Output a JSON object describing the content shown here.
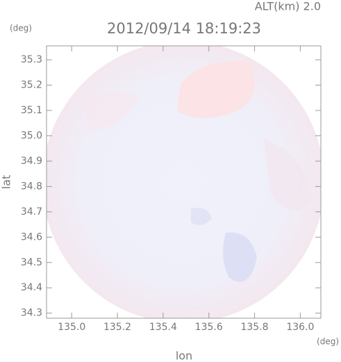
{
  "chart_data": {
    "type": "radar-field",
    "title": "2012/09/14 18:19:23",
    "annotation": "ALT(km) 2.0",
    "x_label": "lon",
    "y_label": "lat",
    "x_unit": "(deg)",
    "y_unit": "(deg)",
    "xlim": [
      134.89,
      136.09
    ],
    "xticks": [
      {
        "value": 135,
        "label": "135.0"
      },
      135.2,
      135.4,
      135.6,
      135.8,
      {
        "value": 136,
        "label": "136.0"
      }
    ],
    "ylim": [
      34.28,
      35.355
    ],
    "yticks": [
      34.3,
      34.4,
      34.5,
      34.6,
      34.7,
      34.8,
      34.9,
      {
        "value": 35,
        "label": "35.0"
      },
      35.1,
      35.2,
      35.3
    ]
  }
}
